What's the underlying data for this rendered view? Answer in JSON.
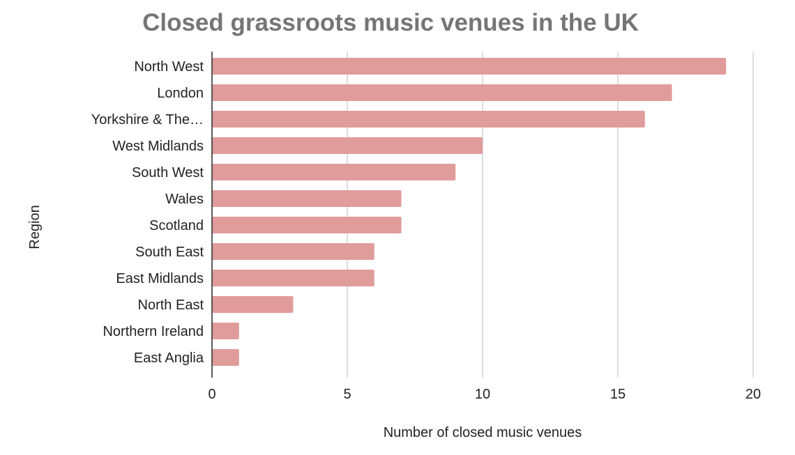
{
  "chart_data": {
    "type": "bar",
    "orientation": "horizontal",
    "title": "Closed grassroots music venues in the UK",
    "xlabel": "Number of closed music venues",
    "ylabel": "Region",
    "categories": [
      "North West",
      "London",
      "Yorkshire & The…",
      "West Midlands",
      "South West",
      "Wales",
      "Scotland",
      "South East",
      "East Midlands",
      "North East",
      "Northern Ireland",
      "East Anglia"
    ],
    "values": [
      19,
      17,
      16,
      10,
      9,
      7,
      7,
      6,
      6,
      3,
      1,
      1
    ],
    "xlim": [
      0,
      20
    ],
    "xticks": [
      0,
      5,
      10,
      15,
      20
    ],
    "grid": true,
    "legend": "none",
    "bar_color": "#e09c9b"
  }
}
